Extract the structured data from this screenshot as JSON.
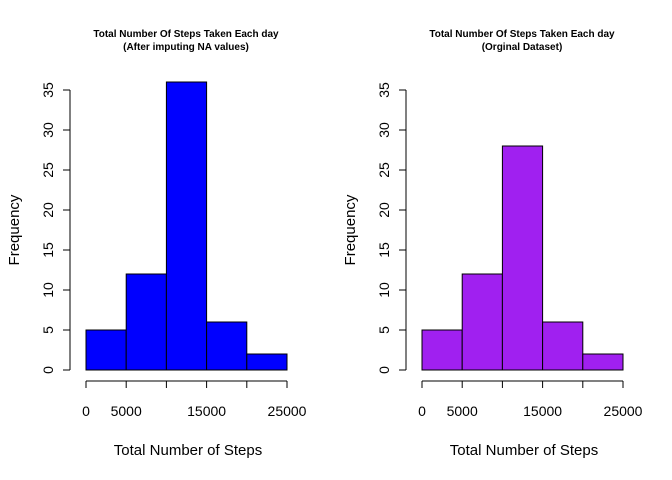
{
  "chart_data": [
    {
      "type": "bar",
      "title": "Total Number Of Steps Taken Each day",
      "subtitle": "(After imputing NA values)",
      "xlabel": "Total Number of Steps",
      "ylabel": "Frequency",
      "bin_edges": [
        0,
        5000,
        10000,
        15000,
        20000,
        25000
      ],
      "values": [
        5,
        12,
        36,
        6,
        2
      ],
      "xlim": [
        0,
        25000
      ],
      "ylim": [
        0,
        35
      ],
      "x_ticks": [
        0,
        5000,
        15000,
        25000
      ],
      "y_ticks": [
        0,
        5,
        10,
        15,
        20,
        25,
        30,
        35
      ],
      "color": "#0000ff",
      "grid": false
    },
    {
      "type": "bar",
      "title": "Total Number Of Steps Taken Each day",
      "subtitle": "(Orginal Dataset)",
      "xlabel": "Total Number of Steps",
      "ylabel": "Frequency",
      "bin_edges": [
        0,
        5000,
        10000,
        15000,
        20000,
        25000
      ],
      "values": [
        5,
        12,
        28,
        6,
        2
      ],
      "xlim": [
        0,
        25000
      ],
      "ylim": [
        0,
        35
      ],
      "x_ticks": [
        0,
        5000,
        15000,
        25000
      ],
      "y_ticks": [
        0,
        5,
        10,
        15,
        20,
        25,
        30,
        35
      ],
      "color": "#a020f0",
      "grid": false
    }
  ]
}
